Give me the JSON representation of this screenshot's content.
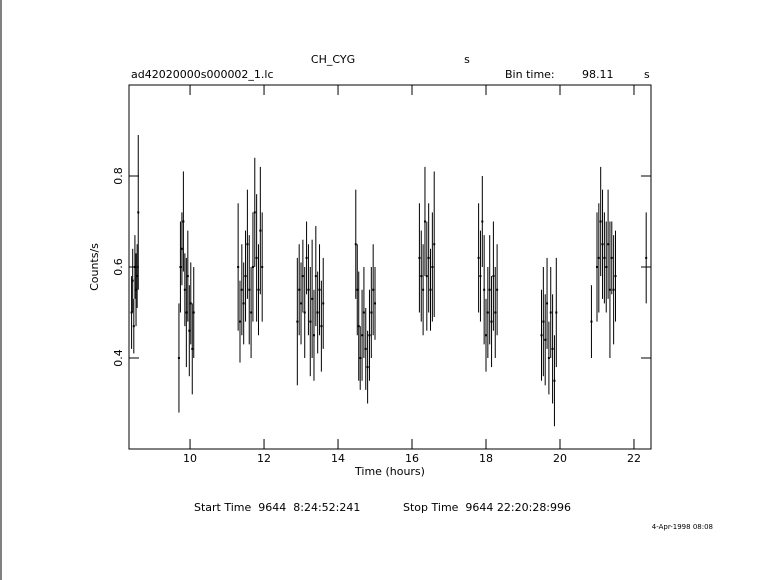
{
  "chart_data": {
    "type": "errorbar",
    "title": "CH_CYG",
    "title_unit": "s",
    "filename": "ad42020000s000002_1.lc",
    "bin_time_label": "Bin time:",
    "bin_time": "98.11",
    "bin_time_unit": "s",
    "x_label": "Time (hours)",
    "y_label": "Counts/s",
    "start_time": "Start Time  9644  8:24:52:241",
    "stop_time": "Stop Time  9644 22:20:28:996",
    "date": "4-Apr-1998 08:08",
    "color": "#000000",
    "xlim": [
      8.35,
      22.46
    ],
    "ylim": [
      0.2,
      1.0
    ],
    "xticks": [
      10,
      12,
      14,
      16,
      18,
      20,
      22
    ],
    "yticks": [
      0.4,
      0.6,
      0.8
    ],
    "x": [
      8.42,
      8.45,
      8.48,
      8.51,
      8.54,
      8.57,
      8.6,
      9.7,
      9.74,
      9.78,
      9.82,
      9.86,
      9.9,
      9.94,
      9.98,
      10.02,
      10.06,
      10.1,
      11.3,
      11.35,
      11.4,
      11.45,
      11.5,
      11.55,
      11.6,
      11.65,
      11.7,
      11.75,
      11.8,
      11.85,
      11.9,
      11.95,
      12.9,
      12.95,
      13.0,
      13.05,
      13.1,
      13.15,
      13.2,
      13.25,
      13.3,
      13.35,
      13.4,
      13.45,
      13.5,
      13.55,
      13.6,
      14.48,
      14.52,
      14.56,
      14.6,
      14.65,
      14.7,
      14.75,
      14.8,
      14.85,
      14.9,
      14.95,
      15.0,
      16.2,
      16.25,
      16.3,
      16.35,
      16.4,
      16.45,
      16.5,
      16.55,
      16.6,
      17.8,
      17.85,
      17.9,
      17.95,
      18.0,
      18.05,
      18.1,
      18.15,
      18.2,
      18.25,
      18.3,
      19.5,
      19.55,
      19.6,
      19.65,
      19.7,
      19.75,
      19.8,
      19.85,
      19.9,
      20.85,
      21.0,
      21.05,
      21.1,
      21.15,
      21.2,
      21.25,
      21.3,
      21.35,
      21.4,
      21.45,
      21.5,
      22.33
    ],
    "values": [
      0.5,
      0.57,
      0.47,
      0.6,
      0.55,
      0.58,
      0.72,
      0.4,
      0.6,
      0.64,
      0.7,
      0.55,
      0.5,
      0.58,
      0.46,
      0.52,
      0.42,
      0.5,
      0.6,
      0.48,
      0.55,
      0.52,
      0.58,
      0.65,
      0.55,
      0.5,
      0.6,
      0.72,
      0.62,
      0.55,
      0.68,
      0.6,
      0.48,
      0.55,
      0.52,
      0.58,
      0.5,
      0.62,
      0.55,
      0.48,
      0.53,
      0.45,
      0.58,
      0.5,
      0.55,
      0.47,
      0.52,
      0.65,
      0.55,
      0.47,
      0.4,
      0.45,
      0.5,
      0.42,
      0.38,
      0.45,
      0.5,
      0.55,
      0.52,
      0.62,
      0.58,
      0.55,
      0.7,
      0.58,
      0.62,
      0.55,
      0.6,
      0.65,
      0.62,
      0.58,
      0.7,
      0.55,
      0.45,
      0.5,
      0.55,
      0.48,
      0.58,
      0.5,
      0.55,
      0.45,
      0.48,
      0.44,
      0.52,
      0.4,
      0.5,
      0.42,
      0.35,
      0.5,
      0.48,
      0.6,
      0.62,
      0.7,
      0.65,
      0.62,
      0.6,
      0.65,
      0.55,
      0.62,
      0.55,
      0.58,
      0.62
    ],
    "errors": [
      0.08,
      0.07,
      0.06,
      0.07,
      0.08,
      0.07,
      0.17,
      0.12,
      0.1,
      0.08,
      0.11,
      0.08,
      0.12,
      0.1,
      0.1,
      0.09,
      0.1,
      0.1,
      0.14,
      0.09,
      0.1,
      0.09,
      0.1,
      0.12,
      0.12,
      0.1,
      0.12,
      0.12,
      0.14,
      0.1,
      0.14,
      0.12,
      0.14,
      0.1,
      0.09,
      0.08,
      0.1,
      0.08,
      0.1,
      0.12,
      0.13,
      0.1,
      0.11,
      0.09,
      0.1,
      0.1,
      0.1,
      0.12,
      0.1,
      0.12,
      0.07,
      0.1,
      0.1,
      0.09,
      0.08,
      0.1,
      0.1,
      0.1,
      0.08,
      0.12,
      0.1,
      0.1,
      0.12,
      0.12,
      0.12,
      0.09,
      0.12,
      0.16,
      0.12,
      0.1,
      0.1,
      0.12,
      0.08,
      0.1,
      0.12,
      0.1,
      0.12,
      0.1,
      0.1,
      0.1,
      0.12,
      0.1,
      0.1,
      0.08,
      0.1,
      0.12,
      0.1,
      0.12,
      0.08,
      0.12,
      0.12,
      0.12,
      0.12,
      0.1,
      0.1,
      0.12,
      0.15,
      0.08,
      0.12,
      0.1,
      0.1
    ]
  }
}
